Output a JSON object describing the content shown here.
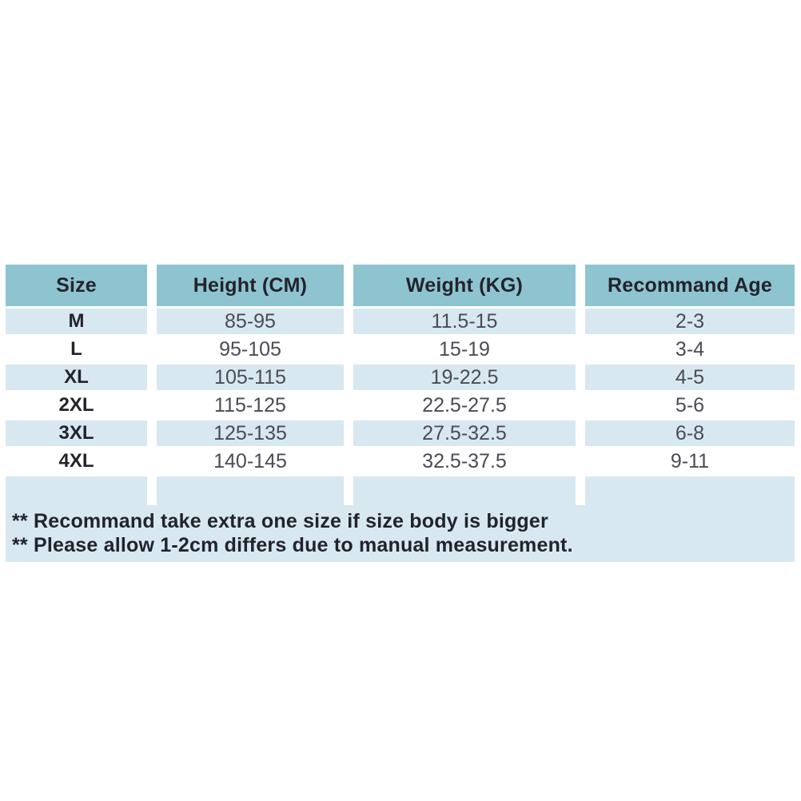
{
  "table": {
    "columns": [
      {
        "label": "Size"
      },
      {
        "label": "Height (CM)"
      },
      {
        "label": "Weight (KG)"
      },
      {
        "label": "Recommand Age"
      }
    ],
    "rows": [
      {
        "size": "M",
        "height": "85-95",
        "weight": "11.5-15",
        "age": "2-3"
      },
      {
        "size": "L",
        "height": "95-105",
        "weight": "15-19",
        "age": "3-4"
      },
      {
        "size": "XL",
        "height": "105-115",
        "weight": "19-22.5",
        "age": "4-5"
      },
      {
        "size": "2XL",
        "height": "115-125",
        "weight": "22.5-27.5",
        "age": "5-6"
      },
      {
        "size": "3XL",
        "height": "125-135",
        "weight": "27.5-32.5",
        "age": "6-8"
      },
      {
        "size": "4XL",
        "height": "140-145",
        "weight": "32.5-37.5",
        "age": "9-11"
      }
    ],
    "notes": [
      "** Recommand take extra one size if size body is bigger",
      "** Please allow 1-2cm differs due to manual measurement."
    ]
  },
  "chart_data": {
    "type": "table",
    "title": "",
    "columns": [
      "Size",
      "Height (CM)",
      "Weight (KG)",
      "Recommand Age"
    ],
    "rows": [
      [
        "M",
        "85-95",
        "11.5-15",
        "2-3"
      ],
      [
        "L",
        "95-105",
        "15-19",
        "3-4"
      ],
      [
        "XL",
        "105-115",
        "19-22.5",
        "4-5"
      ],
      [
        "2XL",
        "115-125",
        "22.5-27.5",
        "5-6"
      ],
      [
        "3XL",
        "125-135",
        "27.5-32.5",
        "6-8"
      ],
      [
        "4XL",
        "140-145",
        "32.5-37.5",
        "9-11"
      ]
    ]
  },
  "colors": {
    "header_bg": "#8ec4d0",
    "row_alt_bg": "#d7e8f0",
    "row_bg": "#ffffff",
    "footer_bg": "#d7e8f0",
    "text_dark": "#23232c",
    "text_data": "#4b4b54"
  }
}
